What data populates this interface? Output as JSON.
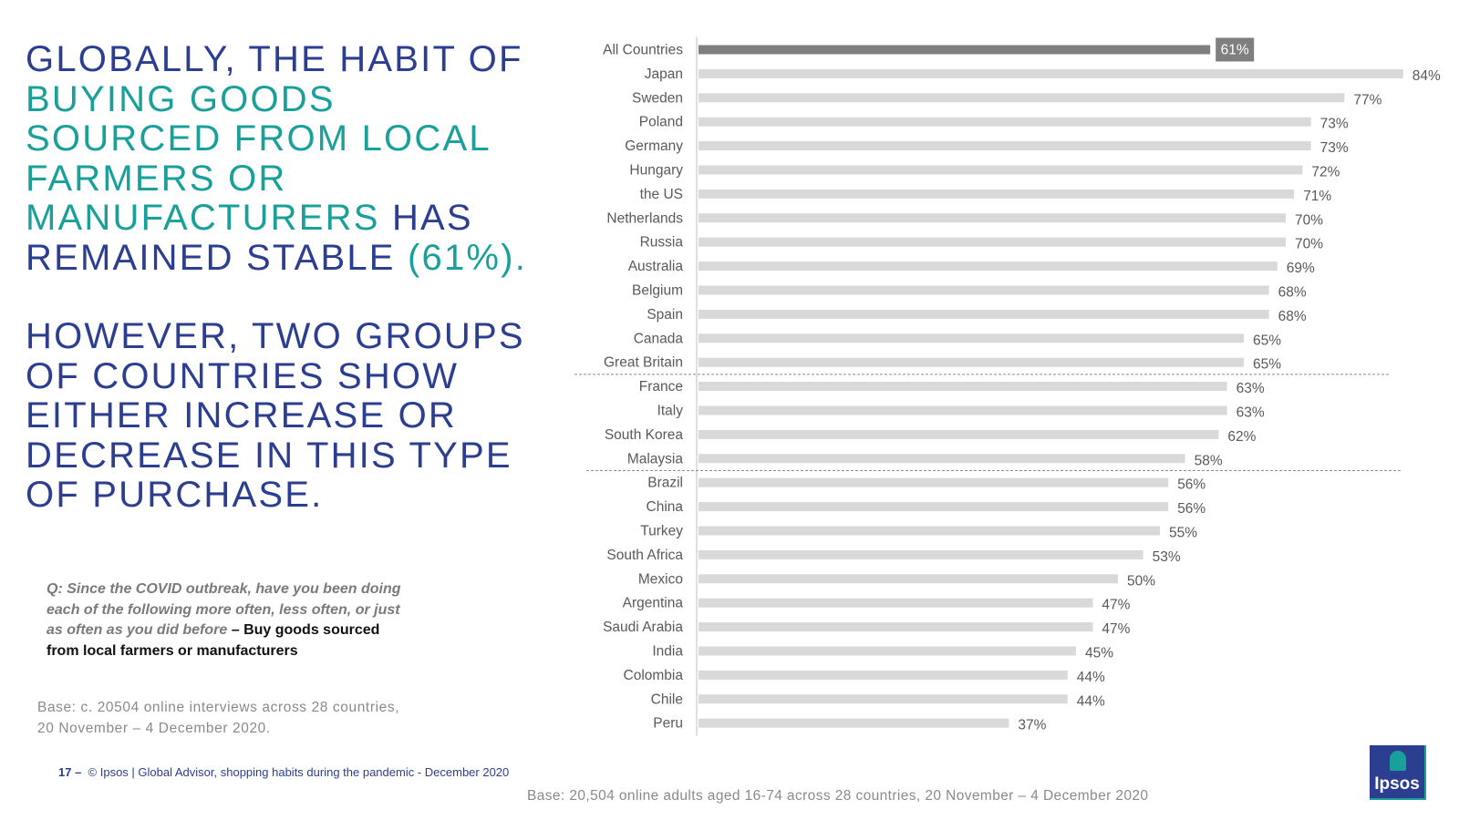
{
  "headline": {
    "line1": "GLOBALLY, THE HABIT OF",
    "line2": "BUYING  GOODS",
    "line3": "SOURCED FROM LOCAL",
    "line4": "FARMERS OR",
    "line5_teal": "MANUFACTURERS",
    "line5_rest": " HAS",
    "line6_dark": "REMAINED STABLE ",
    "line6_teal": "(61%).",
    "second_lines": [
      "HOWEVER, TWO GROUPS",
      "OF COUNTRIES SHOW",
      "EITHER INCREASE OR",
      "DECREASE IN THIS TYPE",
      "OF PURCHASE."
    ]
  },
  "question": {
    "italic_text": "Q: Since the COVID outbreak, have you been doing each of the following more often, less often, or just as often as you did before",
    "dash": " – ",
    "answer": "Buy goods sourced from local farmers or manufacturers"
  },
  "base_left": {
    "line1": "Base: c. 20504 online interviews across 28 countries,",
    "line2": "20 November – 4 December 2020."
  },
  "footer": {
    "page": "17 –",
    "text": "© Ipsos |  Global Advisor, shopping habits during the pandemic - December 2020"
  },
  "base_bottom": "Base: 20,504 online adults aged 16-74 across 28 countries,  20 November – 4 December 2020",
  "logo": {
    "text": "Ipsos"
  },
  "colors": {
    "navy": "#2c3e8f",
    "teal": "#1aa09a",
    "highlight_bar": "#7f7f7f",
    "bar": "#d9d9d9",
    "label": "#595959"
  },
  "chart_data": {
    "type": "bar",
    "orientation": "horizontal",
    "highlight": "All Countries",
    "value_suffix": "%",
    "categories": [
      "All Countries",
      "Japan",
      "Sweden",
      "Poland",
      "Germany",
      "Hungary",
      "the US",
      "Netherlands",
      "Russia",
      "Australia",
      "Belgium",
      "Spain",
      "Canada",
      "Great Britain",
      "France",
      "Italy",
      "South Korea",
      "Malaysia",
      "Brazil",
      "China",
      "Turkey",
      "South Africa",
      "Mexico",
      "Argentina",
      "Saudi Arabia",
      "India",
      "Colombia",
      "Chile",
      "Peru"
    ],
    "values": [
      61,
      84,
      77,
      73,
      73,
      72,
      71,
      70,
      70,
      69,
      68,
      68,
      65,
      65,
      63,
      63,
      62,
      58,
      56,
      56,
      55,
      53,
      50,
      47,
      47,
      45,
      44,
      44,
      37
    ],
    "group_separators_after": [
      "Great Britain",
      "Malaysia"
    ],
    "xlim": [
      0,
      100
    ]
  }
}
